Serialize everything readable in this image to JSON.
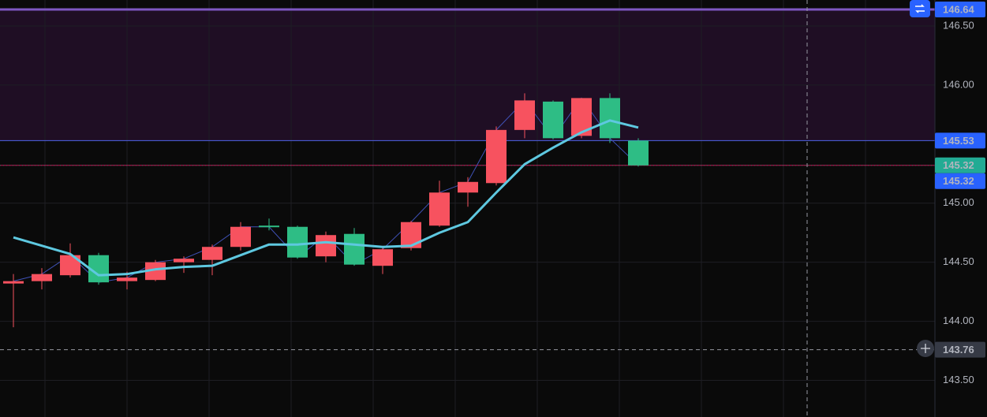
{
  "chart_data": {
    "type": "candlestick",
    "open": [
      144.32,
      144.34,
      144.39,
      144.56,
      144.34,
      144.35,
      144.5,
      144.52,
      144.63,
      144.81,
      144.8,
      144.55,
      144.74,
      144.47,
      144.62,
      144.81,
      145.09,
      145.17,
      145.62,
      145.86,
      145.57,
      145.89,
      145.53
    ],
    "high": [
      144.4,
      144.45,
      144.66,
      144.58,
      144.42,
      144.52,
      144.55,
      144.65,
      144.84,
      144.87,
      144.81,
      144.76,
      144.79,
      144.63,
      144.85,
      145.19,
      145.22,
      145.65,
      145.93,
      145.87,
      145.89,
      145.93,
      145.55
    ],
    "low": [
      143.95,
      144.27,
      144.37,
      144.31,
      144.27,
      144.34,
      144.41,
      144.39,
      144.6,
      144.77,
      144.53,
      144.5,
      144.47,
      144.4,
      144.6,
      144.8,
      144.97,
      145.15,
      145.55,
      145.54,
      145.55,
      145.51,
      145.31
    ],
    "close": [
      144.34,
      144.4,
      144.56,
      144.33,
      144.37,
      144.5,
      144.53,
      144.63,
      144.8,
      144.8,
      144.54,
      144.73,
      144.48,
      144.61,
      144.84,
      145.09,
      145.18,
      145.62,
      145.87,
      145.55,
      145.89,
      145.55,
      145.32
    ],
    "moving_average": [
      144.71,
      144.64,
      144.57,
      144.39,
      144.4,
      144.44,
      144.46,
      144.47,
      144.56,
      144.65,
      144.65,
      144.67,
      144.65,
      144.63,
      144.64,
      144.75,
      144.84,
      145.09,
      145.33,
      145.47,
      145.6,
      145.7,
      145.64
    ],
    "up_color": "#f7525f",
    "down_color": "#2ebd85",
    "ma_color": "#5ec8e0",
    "close_line_color": "#3f51b5",
    "ylim": [
      143.19,
      146.72
    ],
    "yticks": [
      {
        "value": 146.5,
        "label": "146.50"
      },
      {
        "value": 146,
        "label": "146.00"
      },
      {
        "value": 145,
        "label": "145.00"
      },
      {
        "value": 144.5,
        "label": "144.50"
      },
      {
        "value": 144,
        "label": "144.00"
      },
      {
        "value": 143.5,
        "label": "143.50"
      }
    ],
    "zone": {
      "from": 146.64,
      "to": 145.53,
      "color": "#1f0e24"
    },
    "price_labels": [
      {
        "value": 146.64,
        "label": "146.64",
        "color": "#2962ff",
        "line_color": "#7e57c2"
      },
      {
        "value": 145.53,
        "label": "145.53",
        "color": "#2962ff",
        "line_color": "#4f63e8"
      },
      {
        "value": 145.32,
        "label": "145.32",
        "color": "#22ab94",
        "line_color": "#c2185b"
      },
      {
        "value": 145.32,
        "label": "145.32",
        "color": "#2962ff",
        "line_color": "#4a6a5a"
      },
      {
        "value": 143.76,
        "label": "143.76",
        "color": "#363a45",
        "line_color": "#9598a1"
      }
    ],
    "grid": true
  }
}
